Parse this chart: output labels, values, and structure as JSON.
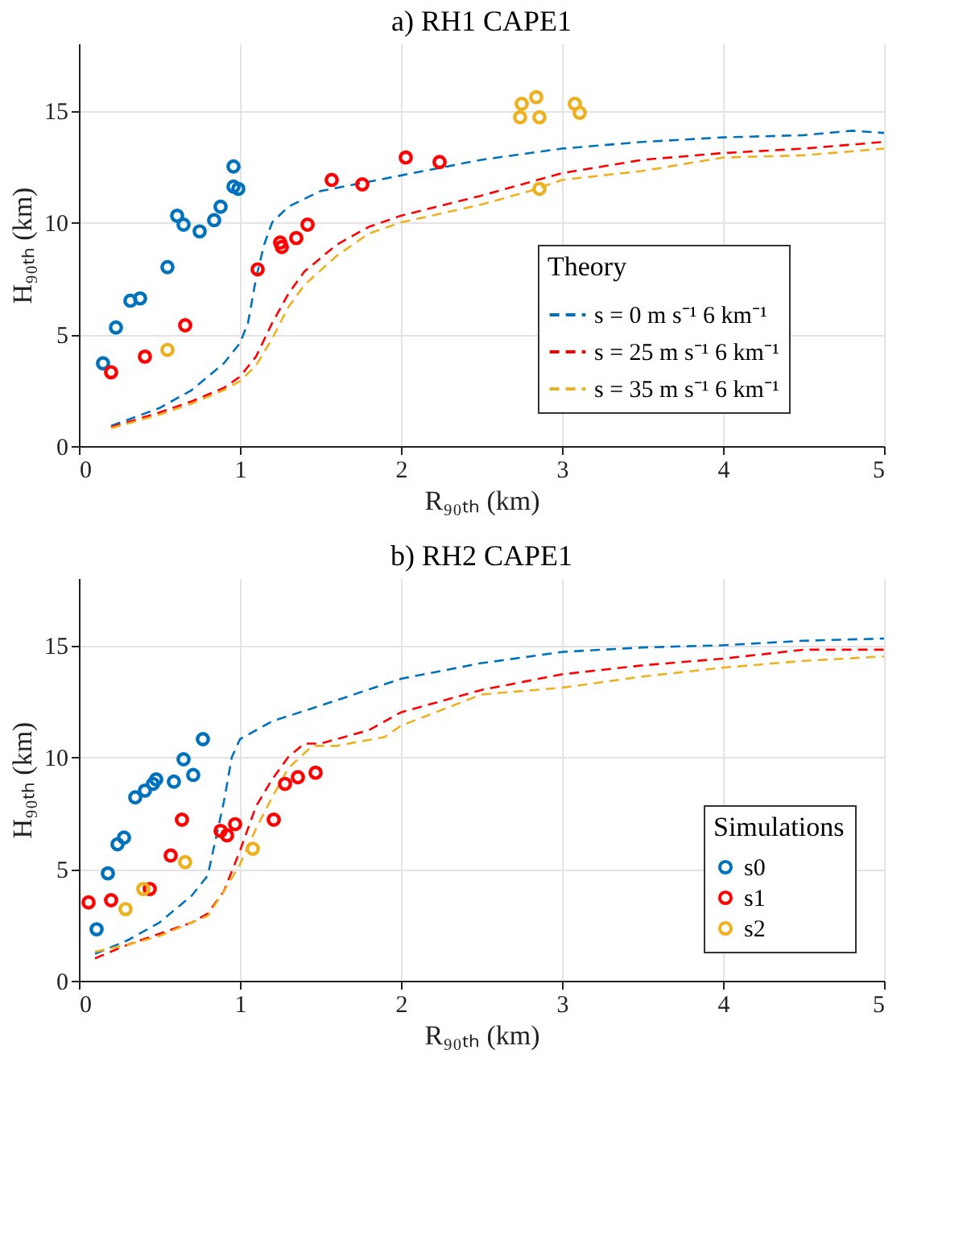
{
  "chart_data": [
    {
      "type": "line",
      "title": "a) RH1 CAPE1",
      "xlabel": "R₉₀ₜₕ (km)",
      "ylabel": "H₉₀ₜₕ (km)",
      "xlim": [
        0,
        5
      ],
      "ylim": [
        0,
        18
      ],
      "xticks": [
        0,
        1,
        2,
        3,
        4,
        5
      ],
      "yticks": [
        0,
        5,
        10,
        15
      ],
      "grid": true,
      "legend": "right",
      "legend_title": "Theory",
      "line_style": "dashed",
      "series": [
        {
          "name": "s = 0 m s⁻¹ 6 km⁻¹",
          "color": "#0072bd",
          "x": [
            0.2,
            0.5,
            0.7,
            0.9,
            1.0,
            1.05,
            1.1,
            1.15,
            1.2,
            1.3,
            1.5,
            2,
            2.5,
            3,
            3.5,
            4,
            4.5,
            4.8,
            5
          ],
          "values": [
            0.9,
            1.7,
            2.5,
            3.7,
            4.6,
            5.5,
            7.5,
            9.0,
            10.0,
            10.7,
            11.4,
            12.1,
            12.8,
            13.3,
            13.6,
            13.8,
            13.9,
            14.1,
            14.0
          ]
        },
        {
          "name": "s = 25 m s⁻¹ 6 km⁻¹",
          "color": "#ff0000",
          "x": [
            0.2,
            0.5,
            0.7,
            0.9,
            1.0,
            1.1,
            1.2,
            1.3,
            1.4,
            1.6,
            1.8,
            2,
            2.5,
            3,
            3.5,
            4,
            4.5,
            5
          ],
          "values": [
            0.85,
            1.5,
            2.0,
            2.6,
            3.1,
            4.0,
            5.5,
            6.8,
            7.8,
            9.0,
            9.8,
            10.3,
            11.2,
            12.2,
            12.8,
            13.1,
            13.3,
            13.6
          ]
        },
        {
          "name": "s = 35 m s⁻¹ 6 km⁻¹",
          "color": "#edb120",
          "x": [
            0.2,
            0.5,
            0.7,
            0.9,
            1.0,
            1.1,
            1.2,
            1.3,
            1.4,
            1.6,
            1.8,
            2,
            2.5,
            2.8,
            3,
            3.5,
            4,
            4.5,
            5
          ],
          "values": [
            0.8,
            1.4,
            1.9,
            2.5,
            2.9,
            3.6,
            4.8,
            6.2,
            7.2,
            8.5,
            9.5,
            10.0,
            10.8,
            11.4,
            11.9,
            12.3,
            12.9,
            13.0,
            13.3
          ]
        },
        {
          "type": "scatter",
          "marker": "circle",
          "color": "#0072bd",
          "x": [
            0.15,
            0.23,
            0.32,
            0.38,
            0.55,
            0.61,
            0.65,
            0.75,
            0.84,
            0.88,
            0.96,
            0.96,
            0.99
          ],
          "values": [
            3.7,
            5.3,
            6.5,
            6.6,
            8.0,
            10.3,
            9.9,
            9.6,
            10.1,
            10.7,
            12.5,
            11.6,
            11.5
          ]
        },
        {
          "type": "scatter",
          "marker": "circle",
          "color": "#ff0000",
          "x": [
            0.2,
            0.41,
            0.66,
            1.11,
            1.25,
            1.26,
            1.35,
            1.42,
            1.57,
            1.76,
            2.03,
            2.24
          ],
          "values": [
            3.3,
            4.0,
            5.4,
            7.9,
            9.1,
            8.9,
            9.3,
            9.9,
            11.9,
            11.7,
            12.9,
            12.7
          ]
        },
        {
          "type": "scatter",
          "marker": "circle",
          "color": "#edb120",
          "x": [
            0.55,
            2.75,
            2.84,
            2.74,
            2.86,
            3.08,
            3.11,
            2.86
          ],
          "values": [
            4.3,
            15.3,
            15.6,
            14.7,
            14.7,
            15.3,
            14.9,
            11.5
          ]
        }
      ]
    },
    {
      "type": "line",
      "title": "b) RH2 CAPE1",
      "xlabel": "R₉₀ₜₕ (km)",
      "ylabel": "H₉₀ₜₕ (km)",
      "xlim": [
        0,
        5
      ],
      "ylim": [
        0,
        18
      ],
      "xticks": [
        0,
        1,
        2,
        3,
        4,
        5
      ],
      "yticks": [
        0,
        5,
        10,
        15
      ],
      "grid": true,
      "legend": "bottom right",
      "legend_title": "Simulations",
      "line_style": "dashed",
      "series": [
        {
          "color": "#0072bd",
          "x": [
            0.1,
            0.3,
            0.5,
            0.7,
            0.8,
            0.9,
            0.95,
            1.0,
            1.2,
            1.5,
            2,
            2.5,
            3,
            3.5,
            4,
            4.5,
            5
          ],
          "values": [
            1.2,
            1.8,
            2.6,
            3.8,
            4.7,
            8.0,
            10.0,
            10.8,
            11.6,
            12.3,
            13.5,
            14.2,
            14.7,
            14.9,
            15.0,
            15.2,
            15.3
          ]
        },
        {
          "color": "#ff0000",
          "x": [
            0.1,
            0.3,
            0.5,
            0.7,
            0.8,
            0.9,
            1.0,
            1.1,
            1.2,
            1.3,
            1.4,
            1.5,
            1.8,
            2,
            2.5,
            3,
            3.5,
            4,
            4.5,
            5
          ],
          "values": [
            1.0,
            1.6,
            2.1,
            2.6,
            3.0,
            4.0,
            5.8,
            7.8,
            9.0,
            10.0,
            10.6,
            10.6,
            11.2,
            12.0,
            13.0,
            13.7,
            14.1,
            14.4,
            14.8,
            14.8
          ]
        },
        {
          "color": "#edb120",
          "x": [
            0.1,
            0.3,
            0.5,
            0.7,
            0.8,
            0.9,
            1.0,
            1.1,
            1.2,
            1.3,
            1.45,
            1.6,
            1.9,
            2,
            2.5,
            3,
            3.5,
            4,
            4.5,
            5
          ],
          "values": [
            1.3,
            1.6,
            2.0,
            2.6,
            2.9,
            4.0,
            5.2,
            6.8,
            8.2,
            9.5,
            10.5,
            10.5,
            10.9,
            11.4,
            12.8,
            13.1,
            13.6,
            14.0,
            14.3,
            14.5
          ]
        },
        {
          "type": "scatter",
          "marker": "circle",
          "name": "s0",
          "color": "#0072bd",
          "x": [
            0.11,
            0.18,
            0.24,
            0.28,
            0.35,
            0.41,
            0.46,
            0.48,
            0.59,
            0.65,
            0.71,
            0.77
          ],
          "values": [
            2.3,
            4.8,
            6.1,
            6.4,
            8.2,
            8.5,
            8.8,
            9.0,
            8.9,
            9.9,
            9.2,
            10.8
          ]
        },
        {
          "type": "scatter",
          "marker": "circle",
          "name": "s1",
          "color": "#ff0000",
          "x": [
            0.06,
            0.2,
            0.44,
            0.57,
            0.64,
            0.88,
            0.92,
            0.97,
            1.21,
            1.28,
            1.36,
            1.47
          ],
          "values": [
            3.5,
            3.6,
            4.1,
            5.6,
            7.2,
            6.7,
            6.5,
            7.0,
            7.2,
            8.8,
            9.1,
            9.3
          ]
        },
        {
          "type": "scatter",
          "marker": "circle",
          "name": "s2",
          "color": "#edb120",
          "x": [
            0.29,
            0.4,
            0.66,
            1.08
          ],
          "values": [
            3.2,
            4.1,
            5.3,
            5.9
          ]
        }
      ]
    }
  ]
}
